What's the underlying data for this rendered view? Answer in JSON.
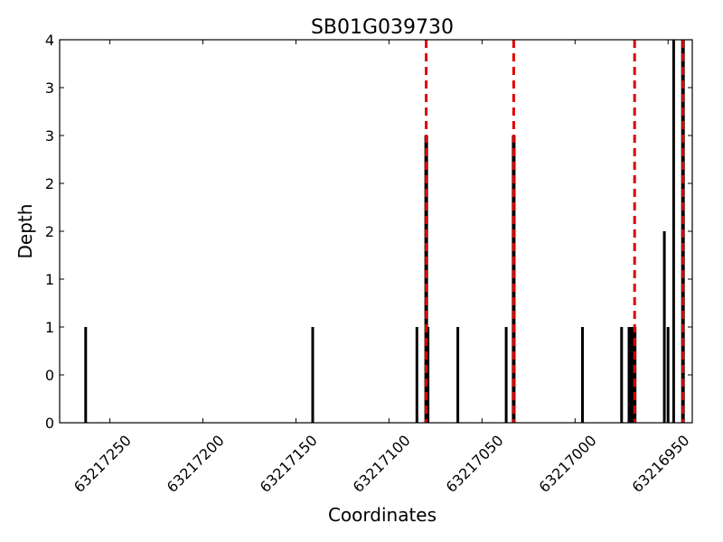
{
  "chart_data": {
    "type": "bar",
    "title": "SB01G039730",
    "xlabel": "Coordinates",
    "ylabel": "Depth",
    "x_axis_inverted": true,
    "xlim": [
      63217277,
      63216937
    ],
    "ylim": [
      0,
      4
    ],
    "ytick_labels": [
      "0",
      "0",
      "1",
      "1",
      "2",
      "2",
      "3",
      "3",
      "4"
    ],
    "xticks": [
      63217250,
      63217200,
      63217150,
      63217100,
      63217050,
      63217000,
      63216950
    ],
    "xtick_labels": [
      "63217250",
      "63217200",
      "63217150",
      "63217100",
      "63217050",
      "63217000",
      "63216950"
    ],
    "bar_color": "#000000",
    "marker_color": "#e00000",
    "grid": false,
    "legend": "none",
    "series": [
      {
        "x": [
          63217263,
          63217141,
          63217085,
          63217079,
          63217063,
          63217037,
          63216996,
          63216975,
          63216971,
          63216970,
          63216969,
          63216952,
          63216950,
          63216947
        ],
        "values": [
          1,
          1,
          1,
          1,
          1,
          1,
          1,
          1,
          1,
          1,
          1,
          2,
          1,
          4
        ]
      }
    ],
    "vertical_markers": [
      {
        "x": 63217080,
        "value": 3
      },
      {
        "x": 63217033,
        "value": 3
      },
      {
        "x": 63216968,
        "value": 1
      },
      {
        "x": 63216942,
        "value": 4
      }
    ]
  }
}
